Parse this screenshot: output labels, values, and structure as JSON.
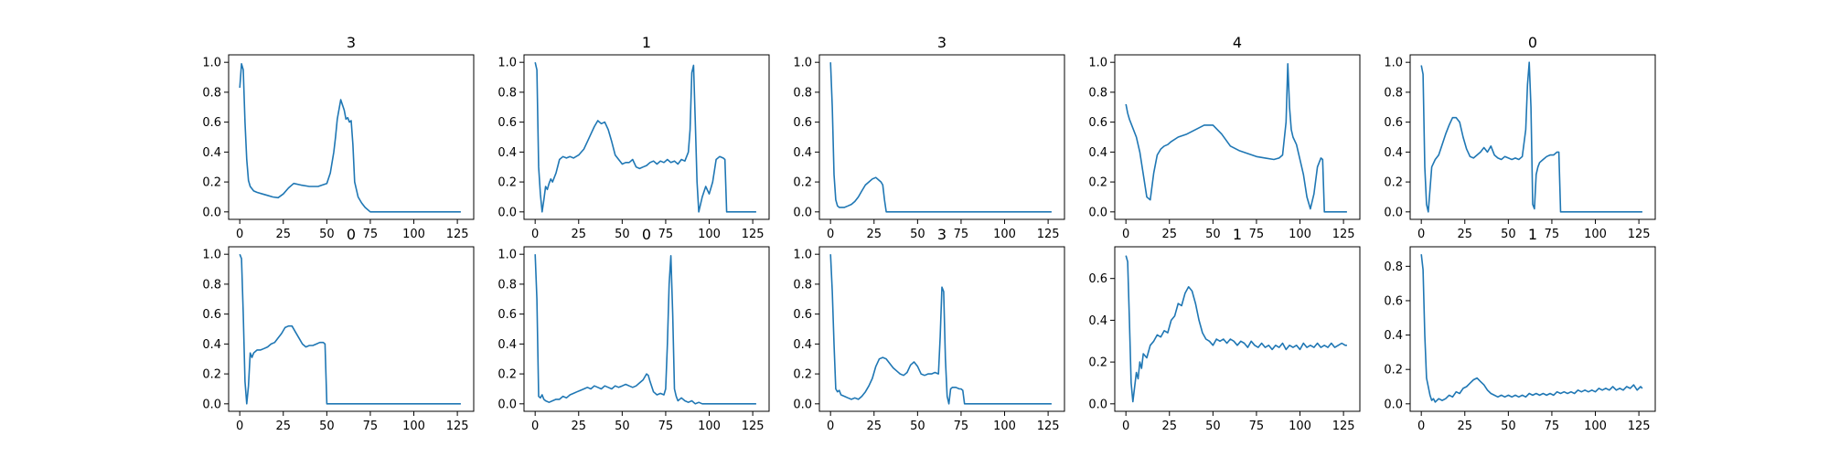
{
  "figure": {
    "line_color": "#1f77b4",
    "frame_color": "#000000",
    "background": "#ffffff"
  },
  "chart_data": [
    {
      "type": "line",
      "title": "3",
      "xlim": [
        -6.4,
        134.4
      ],
      "ylim": [
        -0.05,
        1.05
      ],
      "xticks": [
        0,
        25,
        50,
        75,
        100,
        125
      ],
      "yticks": [
        0.0,
        0.2,
        0.4,
        0.6,
        0.8,
        1.0
      ],
      "x": [
        0,
        1,
        2,
        3,
        4,
        5,
        6,
        8,
        10,
        13,
        16,
        19,
        22,
        25,
        28,
        31,
        35,
        40,
        45,
        50,
        52,
        54,
        55,
        56,
        58,
        60,
        61,
        62,
        63,
        64,
        65,
        66,
        68,
        70,
        72,
        75,
        80,
        90,
        100,
        110,
        120,
        127
      ],
      "y": [
        0.83,
        0.99,
        0.95,
        0.6,
        0.35,
        0.21,
        0.17,
        0.14,
        0.13,
        0.12,
        0.11,
        0.1,
        0.095,
        0.12,
        0.16,
        0.19,
        0.18,
        0.17,
        0.17,
        0.19,
        0.26,
        0.4,
        0.5,
        0.62,
        0.75,
        0.68,
        0.62,
        0.63,
        0.6,
        0.61,
        0.45,
        0.2,
        0.1,
        0.06,
        0.03,
        0.0,
        0.0,
        0.0,
        0.0,
        0.0,
        0.0,
        0.0
      ]
    },
    {
      "type": "line",
      "title": "1",
      "xlim": [
        -6.4,
        134.4
      ],
      "ylim": [
        -0.05,
        1.05
      ],
      "xticks": [
        0,
        25,
        50,
        75,
        100,
        125
      ],
      "yticks": [
        0.0,
        0.2,
        0.4,
        0.6,
        0.8,
        1.0
      ],
      "x": [
        0,
        1,
        2,
        3,
        4,
        5,
        6,
        7,
        8,
        9,
        10,
        12,
        14,
        16,
        18,
        20,
        22,
        25,
        28,
        30,
        32,
        34,
        36,
        38,
        40,
        42,
        44,
        46,
        48,
        50,
        52,
        54,
        56,
        58,
        60,
        62,
        64,
        66,
        68,
        70,
        72,
        74,
        76,
        78,
        80,
        82,
        84,
        86,
        88,
        89,
        90,
        91,
        92,
        93,
        94,
        96,
        98,
        100,
        102,
        104,
        106,
        108,
        109,
        110,
        115,
        120,
        127
      ],
      "y": [
        1.0,
        0.95,
        0.3,
        0.12,
        0.0,
        0.08,
        0.17,
        0.15,
        0.19,
        0.22,
        0.2,
        0.26,
        0.35,
        0.37,
        0.36,
        0.37,
        0.36,
        0.38,
        0.42,
        0.47,
        0.52,
        0.57,
        0.61,
        0.59,
        0.6,
        0.55,
        0.47,
        0.38,
        0.35,
        0.32,
        0.33,
        0.33,
        0.35,
        0.3,
        0.29,
        0.3,
        0.31,
        0.33,
        0.34,
        0.32,
        0.34,
        0.33,
        0.35,
        0.33,
        0.34,
        0.32,
        0.35,
        0.34,
        0.4,
        0.55,
        0.93,
        0.98,
        0.6,
        0.2,
        0.0,
        0.1,
        0.17,
        0.12,
        0.2,
        0.35,
        0.37,
        0.36,
        0.35,
        0.0,
        0.0,
        0.0,
        0.0
      ]
    },
    {
      "type": "line",
      "title": "3",
      "xlim": [
        -6.4,
        134.4
      ],
      "ylim": [
        -0.05,
        1.05
      ],
      "xticks": [
        0,
        25,
        50,
        75,
        100,
        125
      ],
      "yticks": [
        0.0,
        0.2,
        0.4,
        0.6,
        0.8,
        1.0
      ],
      "x": [
        0,
        1,
        2,
        3,
        4,
        5,
        6,
        8,
        10,
        12,
        14,
        16,
        18,
        20,
        22,
        24,
        26,
        28,
        29,
        30,
        31,
        32,
        33,
        40,
        60,
        80,
        100,
        127
      ],
      "y": [
        1.0,
        0.7,
        0.25,
        0.08,
        0.04,
        0.03,
        0.03,
        0.03,
        0.04,
        0.05,
        0.07,
        0.1,
        0.14,
        0.18,
        0.2,
        0.22,
        0.23,
        0.21,
        0.2,
        0.18,
        0.08,
        0.0,
        0.0,
        0.0,
        0.0,
        0.0,
        0.0,
        0.0
      ]
    },
    {
      "type": "line",
      "title": "4",
      "xlim": [
        -6.4,
        134.4
      ],
      "ylim": [
        -0.05,
        1.05
      ],
      "xticks": [
        0,
        25,
        50,
        75,
        100,
        125
      ],
      "yticks": [
        0.0,
        0.2,
        0.4,
        0.6,
        0.8,
        1.0
      ],
      "x": [
        0,
        1,
        2,
        4,
        6,
        8,
        10,
        12,
        14,
        16,
        18,
        20,
        22,
        24,
        26,
        30,
        35,
        40,
        45,
        50,
        55,
        60,
        65,
        70,
        75,
        80,
        85,
        88,
        90,
        92,
        93,
        94,
        95,
        96,
        98,
        100,
        102,
        104,
        106,
        108,
        110,
        112,
        113,
        114,
        120,
        127
      ],
      "y": [
        0.72,
        0.66,
        0.62,
        0.56,
        0.5,
        0.4,
        0.25,
        0.1,
        0.08,
        0.26,
        0.38,
        0.42,
        0.44,
        0.45,
        0.47,
        0.5,
        0.52,
        0.55,
        0.58,
        0.58,
        0.52,
        0.44,
        0.41,
        0.39,
        0.37,
        0.36,
        0.35,
        0.36,
        0.38,
        0.6,
        0.99,
        0.7,
        0.55,
        0.5,
        0.45,
        0.35,
        0.25,
        0.1,
        0.02,
        0.12,
        0.3,
        0.36,
        0.35,
        0.0,
        0.0,
        0.0
      ]
    },
    {
      "type": "line",
      "title": "0",
      "xlim": [
        -6.4,
        134.4
      ],
      "ylim": [
        -0.05,
        1.05
      ],
      "xticks": [
        0,
        25,
        50,
        75,
        100,
        125
      ],
      "yticks": [
        0.0,
        0.2,
        0.4,
        0.6,
        0.8,
        1.0
      ],
      "x": [
        0,
        1,
        2,
        3,
        4,
        5,
        6,
        8,
        10,
        12,
        14,
        16,
        18,
        20,
        22,
        24,
        26,
        28,
        30,
        32,
        34,
        36,
        38,
        40,
        42,
        44,
        46,
        48,
        50,
        52,
        54,
        56,
        58,
        60,
        61,
        62,
        63,
        64,
        65,
        66,
        67,
        68,
        70,
        72,
        74,
        76,
        78,
        79,
        80,
        90,
        100,
        127
      ],
      "y": [
        0.98,
        0.92,
        0.3,
        0.05,
        0.0,
        0.15,
        0.3,
        0.35,
        0.38,
        0.45,
        0.52,
        0.58,
        0.63,
        0.63,
        0.6,
        0.5,
        0.42,
        0.37,
        0.36,
        0.38,
        0.4,
        0.43,
        0.4,
        0.44,
        0.38,
        0.36,
        0.35,
        0.37,
        0.36,
        0.35,
        0.36,
        0.35,
        0.37,
        0.55,
        0.85,
        1.0,
        0.7,
        0.05,
        0.02,
        0.25,
        0.3,
        0.33,
        0.35,
        0.37,
        0.38,
        0.38,
        0.4,
        0.4,
        0.0,
        0.0,
        0.0,
        0.0
      ]
    },
    {
      "type": "line",
      "title": "0",
      "xlim": [
        -6.4,
        134.4
      ],
      "ylim": [
        -0.05,
        1.05
      ],
      "xticks": [
        0,
        25,
        50,
        75,
        100,
        125
      ],
      "yticks": [
        0.0,
        0.2,
        0.4,
        0.6,
        0.8,
        1.0
      ],
      "x": [
        0,
        1,
        2,
        3,
        4,
        5,
        6,
        7,
        8,
        9,
        10,
        12,
        14,
        16,
        18,
        20,
        22,
        24,
        26,
        28,
        30,
        32,
        34,
        36,
        38,
        40,
        42,
        44,
        46,
        48,
        49,
        50,
        51,
        60,
        80,
        100,
        127
      ],
      "y": [
        1.0,
        0.97,
        0.6,
        0.15,
        0.0,
        0.12,
        0.34,
        0.31,
        0.34,
        0.35,
        0.36,
        0.36,
        0.37,
        0.38,
        0.4,
        0.41,
        0.44,
        0.47,
        0.51,
        0.52,
        0.52,
        0.48,
        0.44,
        0.4,
        0.38,
        0.39,
        0.39,
        0.4,
        0.41,
        0.41,
        0.4,
        0.0,
        0.0,
        0.0,
        0.0,
        0.0,
        0.0
      ]
    },
    {
      "type": "line",
      "title": "0",
      "xlim": [
        -6.4,
        134.4
      ],
      "ylim": [
        -0.05,
        1.05
      ],
      "xticks": [
        0,
        25,
        50,
        75,
        100,
        125
      ],
      "yticks": [
        0.0,
        0.2,
        0.4,
        0.6,
        0.8,
        1.0
      ],
      "x": [
        0,
        1,
        2,
        3,
        4,
        5,
        6,
        8,
        10,
        12,
        14,
        16,
        18,
        20,
        22,
        24,
        26,
        28,
        30,
        32,
        34,
        36,
        38,
        40,
        42,
        44,
        46,
        48,
        50,
        52,
        54,
        56,
        58,
        60,
        62,
        64,
        65,
        66,
        68,
        70,
        72,
        74,
        75,
        76,
        77,
        78,
        79,
        80,
        81,
        82,
        84,
        86,
        88,
        90,
        92,
        94,
        96,
        100,
        110,
        127
      ],
      "y": [
        1.0,
        0.7,
        0.05,
        0.04,
        0.06,
        0.03,
        0.02,
        0.01,
        0.02,
        0.03,
        0.03,
        0.05,
        0.04,
        0.06,
        0.07,
        0.08,
        0.09,
        0.1,
        0.11,
        0.1,
        0.12,
        0.11,
        0.1,
        0.12,
        0.11,
        0.1,
        0.12,
        0.11,
        0.12,
        0.13,
        0.12,
        0.11,
        0.12,
        0.14,
        0.16,
        0.2,
        0.19,
        0.15,
        0.08,
        0.06,
        0.07,
        0.06,
        0.1,
        0.4,
        0.8,
        0.99,
        0.6,
        0.1,
        0.05,
        0.02,
        0.04,
        0.02,
        0.01,
        0.02,
        0.0,
        0.01,
        0.0,
        0.0,
        0.0,
        0.0
      ]
    },
    {
      "type": "line",
      "title": "3",
      "xlim": [
        -6.4,
        134.4
      ],
      "ylim": [
        -0.05,
        1.05
      ],
      "xticks": [
        0,
        25,
        50,
        75,
        100,
        125
      ],
      "yticks": [
        0.0,
        0.2,
        0.4,
        0.6,
        0.8,
        1.0
      ],
      "x": [
        0,
        1,
        2,
        3,
        4,
        5,
        6,
        8,
        10,
        12,
        14,
        16,
        18,
        20,
        22,
        24,
        26,
        28,
        30,
        32,
        34,
        36,
        38,
        40,
        42,
        44,
        46,
        48,
        50,
        52,
        54,
        56,
        58,
        60,
        62,
        63,
        64,
        65,
        66,
        67,
        68,
        69,
        70,
        72,
        74,
        75,
        76,
        77,
        78,
        80,
        90,
        110,
        127
      ],
      "y": [
        1.0,
        0.75,
        0.4,
        0.1,
        0.08,
        0.09,
        0.06,
        0.05,
        0.04,
        0.03,
        0.04,
        0.03,
        0.05,
        0.08,
        0.12,
        0.17,
        0.25,
        0.3,
        0.31,
        0.3,
        0.27,
        0.24,
        0.22,
        0.2,
        0.19,
        0.21,
        0.26,
        0.28,
        0.25,
        0.2,
        0.19,
        0.2,
        0.2,
        0.21,
        0.2,
        0.45,
        0.78,
        0.75,
        0.3,
        0.05,
        0.0,
        0.1,
        0.11,
        0.11,
        0.1,
        0.1,
        0.09,
        0.0,
        0.0,
        0.0,
        0.0,
        0.0,
        0.0
      ]
    },
    {
      "type": "line",
      "title": "1",
      "xlim": [
        -6.4,
        134.4
      ],
      "ylim": [
        -0.0358,
        0.7518
      ],
      "xticks": [
        0,
        25,
        50,
        75,
        100,
        125
      ],
      "yticks": [
        0.0,
        0.2,
        0.4,
        0.6
      ],
      "x": [
        0,
        1,
        2,
        3,
        4,
        5,
        6,
        7,
        8,
        9,
        10,
        12,
        14,
        16,
        18,
        20,
        22,
        24,
        26,
        28,
        30,
        32,
        34,
        36,
        38,
        40,
        42,
        44,
        46,
        48,
        50,
        52,
        54,
        56,
        58,
        60,
        62,
        64,
        66,
        68,
        70,
        72,
        74,
        76,
        78,
        80,
        82,
        84,
        86,
        88,
        90,
        92,
        94,
        96,
        98,
        100,
        102,
        104,
        106,
        108,
        110,
        112,
        114,
        116,
        118,
        120,
        122,
        124,
        126,
        127
      ],
      "y": [
        0.71,
        0.68,
        0.4,
        0.1,
        0.01,
        0.08,
        0.15,
        0.12,
        0.2,
        0.17,
        0.24,
        0.22,
        0.28,
        0.3,
        0.33,
        0.32,
        0.35,
        0.34,
        0.4,
        0.42,
        0.48,
        0.47,
        0.53,
        0.56,
        0.54,
        0.48,
        0.4,
        0.34,
        0.31,
        0.3,
        0.28,
        0.31,
        0.3,
        0.31,
        0.29,
        0.31,
        0.3,
        0.28,
        0.3,
        0.29,
        0.27,
        0.3,
        0.28,
        0.27,
        0.29,
        0.27,
        0.28,
        0.26,
        0.28,
        0.27,
        0.29,
        0.26,
        0.28,
        0.27,
        0.28,
        0.26,
        0.29,
        0.27,
        0.28,
        0.27,
        0.29,
        0.27,
        0.28,
        0.27,
        0.29,
        0.27,
        0.28,
        0.29,
        0.28,
        0.28
      ]
    },
    {
      "type": "line",
      "title": "1",
      "xlim": [
        -6.4,
        134.4
      ],
      "ylim": [
        -0.0435,
        0.9135
      ],
      "xticks": [
        0,
        25,
        50,
        75,
        100,
        125
      ],
      "yticks": [
        0.0,
        0.2,
        0.4,
        0.6,
        0.8
      ],
      "x": [
        0,
        1,
        2,
        3,
        4,
        5,
        6,
        7,
        8,
        9,
        10,
        12,
        14,
        16,
        18,
        20,
        22,
        24,
        26,
        28,
        30,
        32,
        34,
        36,
        38,
        40,
        42,
        44,
        46,
        48,
        50,
        52,
        54,
        56,
        58,
        60,
        62,
        64,
        66,
        68,
        70,
        72,
        74,
        76,
        78,
        80,
        82,
        84,
        86,
        88,
        90,
        92,
        94,
        96,
        98,
        100,
        102,
        104,
        106,
        108,
        110,
        112,
        114,
        116,
        118,
        120,
        122,
        124,
        126,
        127
      ],
      "y": [
        0.87,
        0.78,
        0.4,
        0.15,
        0.1,
        0.05,
        0.02,
        0.03,
        0.01,
        0.02,
        0.03,
        0.02,
        0.03,
        0.05,
        0.04,
        0.07,
        0.06,
        0.09,
        0.1,
        0.12,
        0.14,
        0.15,
        0.13,
        0.11,
        0.08,
        0.06,
        0.05,
        0.04,
        0.05,
        0.04,
        0.05,
        0.04,
        0.05,
        0.04,
        0.05,
        0.04,
        0.06,
        0.05,
        0.06,
        0.05,
        0.06,
        0.05,
        0.06,
        0.05,
        0.07,
        0.06,
        0.07,
        0.06,
        0.07,
        0.06,
        0.08,
        0.07,
        0.08,
        0.07,
        0.08,
        0.07,
        0.09,
        0.08,
        0.09,
        0.08,
        0.1,
        0.08,
        0.09,
        0.08,
        0.1,
        0.09,
        0.11,
        0.08,
        0.1,
        0.09
      ]
    }
  ]
}
